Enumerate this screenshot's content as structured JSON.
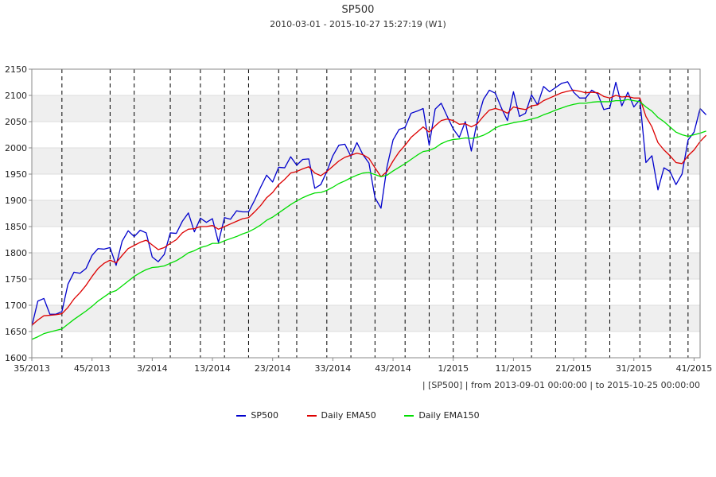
{
  "chart_data": {
    "type": "line",
    "title": "SP500",
    "subtitle": "2010-03-01 - 2015-10-27 15:27:19 (W1)",
    "note": "| [SP500] | from 2013-09-01 00:00:00 | to 2015-10-25 00:00:00",
    "xlabel": "",
    "ylabel": "",
    "ylim": [
      1600,
      2150
    ],
    "yticks": [
      1600,
      1650,
      1700,
      1750,
      1800,
      1850,
      1900,
      1950,
      2000,
      2050,
      2100,
      2150
    ],
    "xlim": [
      0,
      111
    ],
    "x_ticks": [
      {
        "x": 0,
        "label": "35/2013"
      },
      {
        "x": 10,
        "label": "45/2013"
      },
      {
        "x": 20,
        "label": "3/2014"
      },
      {
        "x": 30,
        "label": "13/2014"
      },
      {
        "x": 40,
        "label": "23/2014"
      },
      {
        "x": 50,
        "label": "33/2014"
      },
      {
        "x": 60,
        "label": "43/2014"
      },
      {
        "x": 70,
        "label": "1/2015"
      },
      {
        "x": 80,
        "label": "11/2015"
      },
      {
        "x": 90,
        "label": "21/2015"
      },
      {
        "x": 100,
        "label": "31/2015"
      },
      {
        "x": 110,
        "label": "41/2015"
      }
    ],
    "vlines": [
      5,
      13,
      17,
      23,
      28,
      32,
      36,
      41,
      44,
      49,
      53,
      57,
      62,
      66,
      70,
      74,
      77,
      83,
      87,
      92,
      96,
      101,
      106,
      109
    ],
    "grid": "alternating horizontal bands",
    "legend_position": "bottom",
    "series": [
      {
        "name": "SP500",
        "color": "#0000cc",
        "values": [
          1660,
          1708,
          1713,
          1683,
          1683,
          1688,
          1740,
          1763,
          1761,
          1770,
          1795,
          1808,
          1807,
          1810,
          1776,
          1822,
          1842,
          1831,
          1843,
          1838,
          1792,
          1783,
          1797,
          1838,
          1837,
          1860,
          1876,
          1840,
          1866,
          1858,
          1865,
          1820,
          1867,
          1864,
          1880,
          1878,
          1878,
          1900,
          1925,
          1948,
          1935,
          1963,
          1962,
          1983,
          1967,
          1978,
          1979,
          1923,
          1930,
          1955,
          1985,
          2005,
          2007,
          1984,
          2010,
          1987,
          1971,
          1905,
          1885,
          1964,
          2015,
          2035,
          2039,
          2066,
          2070,
          2075,
          2005,
          2074,
          2085,
          2060,
          2036,
          2020,
          2050,
          1994,
          2052,
          2092,
          2110,
          2104,
          2076,
          2052,
          2107,
          2060,
          2066,
          2101,
          2082,
          2117,
          2107,
          2115,
          2123,
          2126,
          2106,
          2095,
          2095,
          2110,
          2103,
          2073,
          2076,
          2125,
          2080,
          2106,
          2078,
          2092,
          1972,
          1985,
          1920,
          1962,
          1955,
          1930,
          1950,
          2015,
          2030,
          2075,
          2063
        ],
        "linestyle": "solid"
      },
      {
        "name": "Daily EMA50",
        "color": "#dd0000",
        "values": [
          1662,
          1672,
          1680,
          1681,
          1682,
          1684,
          1696,
          1712,
          1724,
          1738,
          1755,
          1770,
          1780,
          1786,
          1781,
          1795,
          1808,
          1814,
          1820,
          1824,
          1815,
          1806,
          1810,
          1818,
          1825,
          1838,
          1845,
          1846,
          1850,
          1850,
          1852,
          1845,
          1850,
          1855,
          1860,
          1865,
          1867,
          1878,
          1890,
          1905,
          1915,
          1930,
          1940,
          1952,
          1955,
          1960,
          1964,
          1952,
          1947,
          1955,
          1965,
          1975,
          1982,
          1986,
          1990,
          1987,
          1980,
          1962,
          1945,
          1955,
          1975,
          1992,
          2005,
          2020,
          2030,
          2040,
          2030,
          2042,
          2052,
          2055,
          2052,
          2045,
          2046,
          2040,
          2046,
          2060,
          2072,
          2075,
          2072,
          2066,
          2078,
          2075,
          2073,
          2080,
          2082,
          2090,
          2095,
          2100,
          2105,
          2108,
          2110,
          2108,
          2105,
          2106,
          2105,
          2098,
          2095,
          2100,
          2097,
          2098,
          2095,
          2095,
          2060,
          2040,
          2010,
          1996,
          1985,
          1972,
          1970,
          1985,
          1996,
          2012,
          2024
        ],
        "linestyle": "solid"
      },
      {
        "name": "Daily EMA150",
        "color": "#00dd00",
        "values": [
          1635,
          1640,
          1646,
          1649,
          1652,
          1655,
          1664,
          1673,
          1681,
          1689,
          1698,
          1708,
          1716,
          1724,
          1728,
          1737,
          1746,
          1755,
          1762,
          1768,
          1772,
          1773,
          1775,
          1780,
          1785,
          1792,
          1800,
          1804,
          1810,
          1813,
          1818,
          1818,
          1823,
          1827,
          1831,
          1836,
          1840,
          1846,
          1853,
          1862,
          1868,
          1876,
          1884,
          1892,
          1899,
          1905,
          1910,
          1914,
          1915,
          1919,
          1925,
          1932,
          1937,
          1943,
          1948,
          1952,
          1953,
          1949,
          1945,
          1948,
          1956,
          1963,
          1970,
          1978,
          1986,
          1993,
          1995,
          2000,
          2008,
          2013,
          2016,
          2017,
          2019,
          2018,
          2020,
          2024,
          2030,
          2038,
          2043,
          2045,
          2048,
          2050,
          2052,
          2055,
          2058,
          2063,
          2067,
          2072,
          2076,
          2080,
          2083,
          2085,
          2085,
          2087,
          2088,
          2088,
          2088,
          2090,
          2090,
          2092,
          2090,
          2088,
          2078,
          2070,
          2058,
          2050,
          2040,
          2030,
          2025,
          2022,
          2025,
          2028,
          2032
        ],
        "linestyle": "solid"
      }
    ]
  }
}
